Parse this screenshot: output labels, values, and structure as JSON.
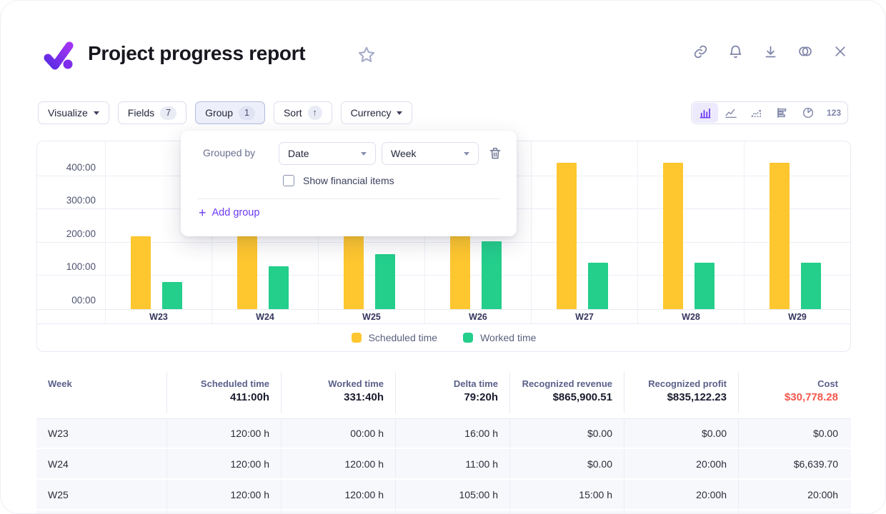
{
  "header": {
    "title": "Project progress report",
    "icons": [
      "favorite-star",
      "link",
      "notifications-bell",
      "download",
      "compare-circles",
      "close"
    ]
  },
  "toolbar": {
    "visualize_label": "Visualize",
    "fields_label": "Fields",
    "fields_count": "7",
    "group_label": "Group",
    "group_count": "1",
    "sort_label": "Sort",
    "sort_arrow": "↑",
    "currency_label": "Currency",
    "view_switcher": [
      "bar-chart",
      "line-chart",
      "area-chart",
      "horizontal-bar-chart",
      "pie-chart",
      "numbers"
    ],
    "numbers_label": "123",
    "active_view": "bar-chart"
  },
  "group_popup": {
    "grouped_by_label": "Grouped by",
    "field_select_value": "Date",
    "interval_select_value": "Week",
    "checkbox_label": "Show financial items",
    "checkbox_checked": false,
    "add_group_label": "Add group",
    "add_group_plus": "+"
  },
  "chart_data": {
    "type": "bar",
    "title": "",
    "categories": [
      "W23",
      "W24",
      "W25",
      "W26",
      "W27",
      "W28",
      "W29"
    ],
    "series": [
      {
        "name": "Scheduled time",
        "color": "#fec62f",
        "values": [
          220,
          220,
          220,
          220,
          440,
          440,
          440
        ]
      },
      {
        "name": "Worked time",
        "color": "#24ce8b",
        "values": [
          82,
          128,
          165,
          205,
          140,
          140,
          140
        ]
      }
    ],
    "unit": "hours",
    "ylim": [
      0,
      505
    ],
    "y_ticks": [
      {
        "value": 0,
        "label": "00:00"
      },
      {
        "value": 100,
        "label": "100:00"
      },
      {
        "value": 200,
        "label": "200:00"
      },
      {
        "value": 300,
        "label": "300:00"
      },
      {
        "value": 400,
        "label": "400:00"
      }
    ],
    "grid": true,
    "legend_position": "bottom"
  },
  "colors": {
    "accent_purple": "#6d3bf5",
    "scheduled_yellow": "#fec62f",
    "worked_green": "#24ce8b",
    "cost_red": "#f4574d"
  },
  "table": {
    "columns": [
      {
        "label": "Week",
        "total": "",
        "align": "left"
      },
      {
        "label": "Scheduled time",
        "total": "411:00h",
        "align": "right"
      },
      {
        "label": "Worked time",
        "total": "331:40h",
        "align": "right"
      },
      {
        "label": "Delta time",
        "total": "79:20h",
        "align": "right"
      },
      {
        "label": "Recognized revenue",
        "total": "$865,900.51",
        "align": "right"
      },
      {
        "label": "Recognized profit",
        "total": "$835,122.23",
        "align": "right"
      },
      {
        "label": "Cost",
        "total": "$30,778.28",
        "align": "right",
        "total_color": "#f4574d"
      }
    ],
    "rows": [
      [
        "W23",
        "120:00 h",
        "00:00 h",
        "16:00 h",
        "$0.00",
        "$0.00",
        "$0.00"
      ],
      [
        "W24",
        "120:00 h",
        "120:00 h",
        "11:00 h",
        "$0.00",
        "20:00h",
        "$6,639.70"
      ],
      [
        "W25",
        "120:00 h",
        "120:00 h",
        "105:00 h",
        "15:00 h",
        "20:00h",
        "20:00h"
      ],
      [
        "",
        "",
        "",
        "",
        "",
        "",
        ""
      ]
    ]
  }
}
